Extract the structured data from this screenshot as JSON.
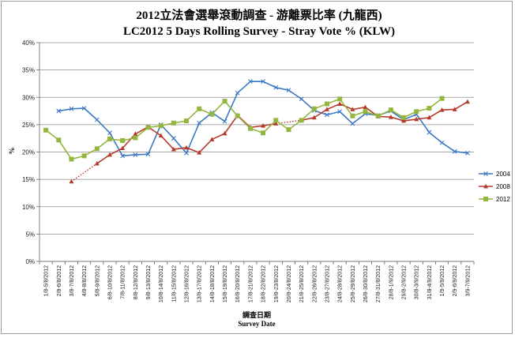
{
  "chart_data": {
    "type": "line",
    "title": "2012立法會選舉滾動調查 - 游離票比率 (九龍西)",
    "subtitle": "LC2012 5 Days Rolling Survey - Stray Vote % (KLW)",
    "xlabel_zh": "調查日期",
    "xlabel": "Survey Date",
    "ylabel": "%",
    "ylim": [
      0,
      40
    ],
    "yticks": [
      "0%",
      "5%",
      "10%",
      "15%",
      "20%",
      "25%",
      "30%",
      "35%",
      "40%"
    ],
    "grid": true,
    "legend_position": "right",
    "categories": [
      "1/8-5/8/2012",
      "2/8-6/8/2012",
      "3/8-7/8/2012",
      "4/8-8/8/2012",
      "5/8-9/8/2012",
      "6/8-10/8/2012",
      "7/8-11/8/2012",
      "8/8-12/8/2012",
      "9/8-13/8/2012",
      "10/8-14/8/2012",
      "11/8-15/8/2012",
      "12/8-16/8/2012",
      "13/8-17/8/2012",
      "14/8-18/8/2012",
      "15/8-19/8/2012",
      "16/8-20/8/2012",
      "17/8-21/8/2012",
      "18/8-22/8/2012",
      "19/8-23/8/2012",
      "20/8-24/8/2012",
      "21/8-25/8/2012",
      "22/8-26/8/2012",
      "23/8-27/8/2012",
      "24/8-28/8/2012",
      "25/8-29/8/2012",
      "26/8-30/8/2012",
      "27/8-31/8/2012",
      "28/8-1/9/2012",
      "29/8-2/9/2012",
      "30/8-3/9/2012",
      "31/8-4/9/2012",
      "1/9-5/9/2012",
      "2/9-6/9/2012",
      "3/9-7/9/2012"
    ],
    "series": [
      {
        "name": "2004",
        "color": "#3b78c4",
        "marker": "x",
        "values": [
          null,
          27.5,
          27.9,
          28.0,
          25.9,
          23.5,
          19.3,
          19.5,
          19.6,
          25.0,
          22.5,
          19.8,
          25.3,
          27.2,
          25.6,
          30.8,
          32.9,
          32.9,
          31.8,
          31.3,
          29.7,
          27.6,
          26.8,
          27.4,
          25.2,
          27.0,
          26.7,
          27.5,
          25.9,
          26.9,
          23.6,
          21.7,
          20.1,
          19.8
        ]
      },
      {
        "name": "2008",
        "color": "#b53a2c",
        "marker": "triangle",
        "values": [
          null,
          null,
          14.6,
          null,
          17.9,
          19.5,
          20.7,
          23.3,
          24.6,
          23.0,
          20.5,
          20.8,
          19.9,
          22.3,
          23.4,
          26.7,
          24.5,
          24.8,
          25.2,
          null,
          25.8,
          26.3,
          27.8,
          28.8,
          27.8,
          28.2,
          26.5,
          26.4,
          25.7,
          26.0,
          26.3,
          27.7,
          27.8,
          29.2
        ]
      },
      {
        "name": "2012",
        "color": "#92b63e",
        "marker": "square",
        "values": [
          24.0,
          22.2,
          18.7,
          19.3,
          20.6,
          22.4,
          22.1,
          22.6,
          24.5,
          24.8,
          25.3,
          25.7,
          27.9,
          26.9,
          29.3,
          26.6,
          24.3,
          23.5,
          25.8,
          24.1,
          25.8,
          27.9,
          28.8,
          29.7,
          26.6,
          27.4,
          26.6,
          27.7,
          26.3,
          27.4,
          28.0,
          29.8,
          null,
          null
        ]
      }
    ]
  }
}
